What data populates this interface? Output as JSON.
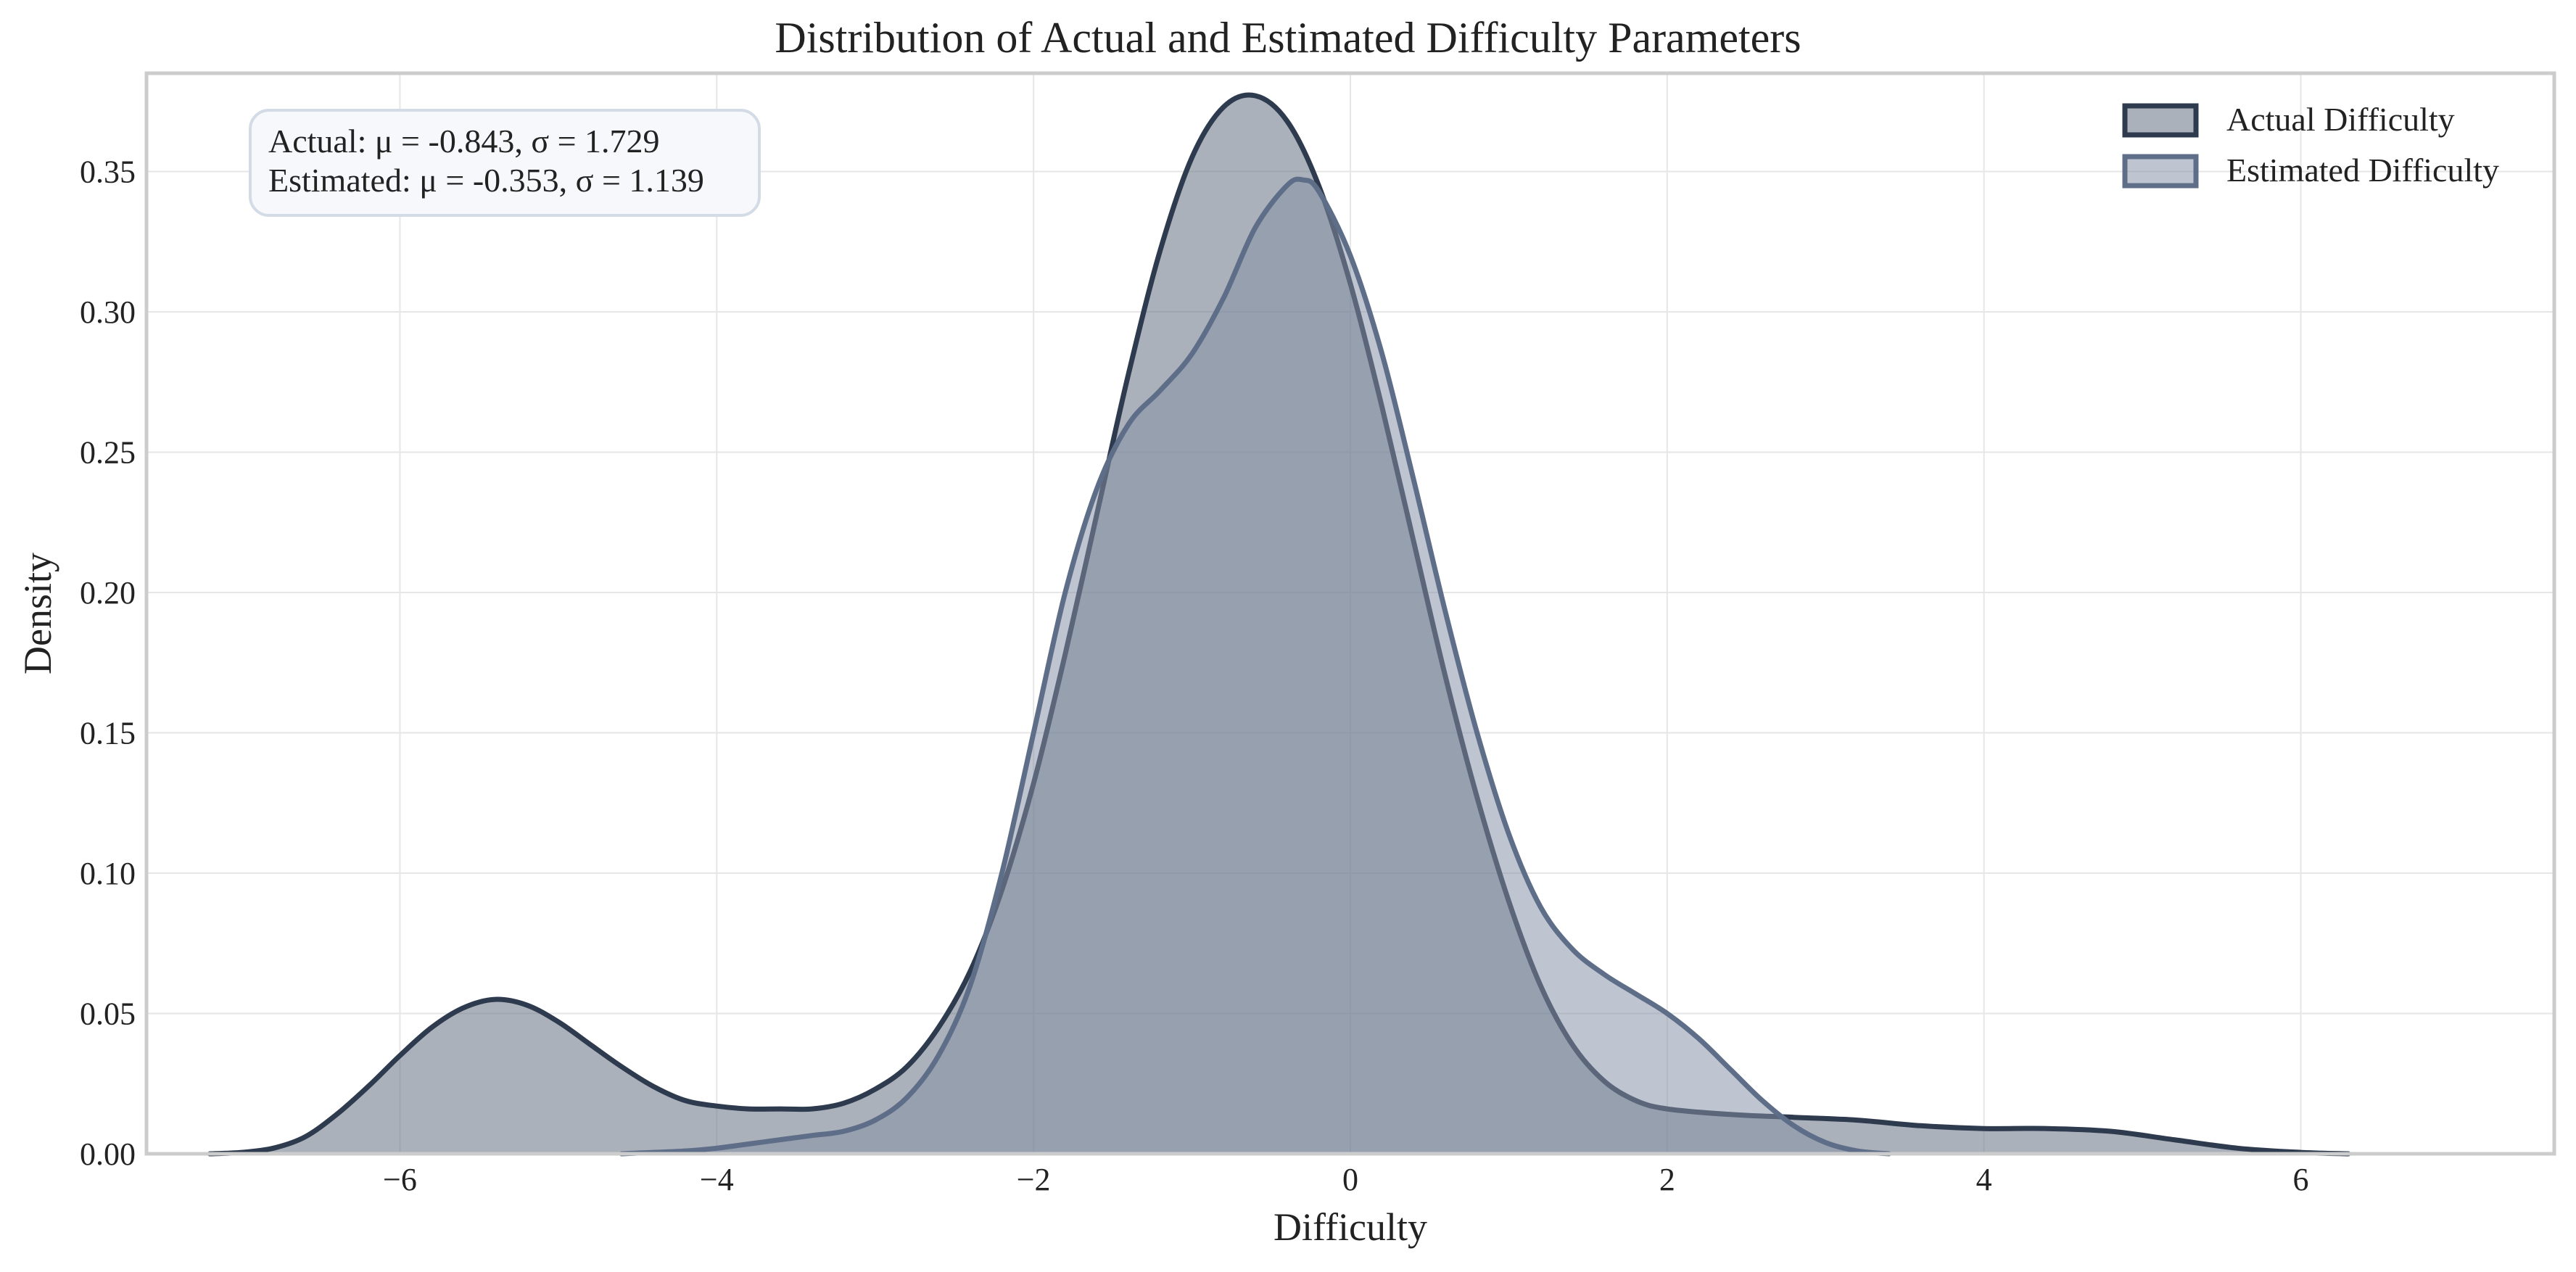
{
  "chart_data": {
    "type": "area",
    "title": "Distribution of Actual and Estimated Difficulty Parameters",
    "xlabel": "Difficulty",
    "ylabel": "Density",
    "xlim": [
      -7.6,
      7.6
    ],
    "ylim": [
      0,
      0.385
    ],
    "x_ticks": [
      -6,
      -4,
      -2,
      0,
      2,
      4,
      6
    ],
    "x_tick_labels": [
      "−6",
      "−4",
      "−2",
      "0",
      "2",
      "4",
      "6"
    ],
    "y_ticks": [
      0.0,
      0.05,
      0.1,
      0.15,
      0.2,
      0.25,
      0.3,
      0.35
    ],
    "y_tick_labels": [
      "0.00",
      "0.05",
      "0.10",
      "0.15",
      "0.20",
      "0.25",
      "0.30",
      "0.35"
    ],
    "grid": true,
    "legend_position": "top-right",
    "stats_box": {
      "line1": "Actual: μ = -0.843, σ = 1.729",
      "line2": "Estimated: μ = -0.353, σ = 1.139"
    },
    "series": [
      {
        "name": "Actual Difficulty",
        "color": "#2e3a4e",
        "fill": "#6b7585",
        "fill_opacity": 0.57,
        "points": [
          [
            -7.2,
            0.0
          ],
          [
            -7.0,
            0.0005
          ],
          [
            -6.8,
            0.002
          ],
          [
            -6.6,
            0.006
          ],
          [
            -6.4,
            0.014
          ],
          [
            -6.2,
            0.024
          ],
          [
            -6.0,
            0.035
          ],
          [
            -5.8,
            0.045
          ],
          [
            -5.6,
            0.052
          ],
          [
            -5.4,
            0.055
          ],
          [
            -5.2,
            0.053
          ],
          [
            -5.0,
            0.047
          ],
          [
            -4.8,
            0.039
          ],
          [
            -4.6,
            0.031
          ],
          [
            -4.4,
            0.024
          ],
          [
            -4.2,
            0.019
          ],
          [
            -4.0,
            0.017
          ],
          [
            -3.8,
            0.016
          ],
          [
            -3.6,
            0.016
          ],
          [
            -3.4,
            0.016
          ],
          [
            -3.2,
            0.018
          ],
          [
            -3.0,
            0.023
          ],
          [
            -2.8,
            0.031
          ],
          [
            -2.6,
            0.045
          ],
          [
            -2.4,
            0.065
          ],
          [
            -2.2,
            0.094
          ],
          [
            -2.0,
            0.132
          ],
          [
            -1.8,
            0.178
          ],
          [
            -1.6,
            0.228
          ],
          [
            -1.4,
            0.278
          ],
          [
            -1.2,
            0.322
          ],
          [
            -1.0,
            0.355
          ],
          [
            -0.8,
            0.373
          ],
          [
            -0.6,
            0.377
          ],
          [
            -0.4,
            0.368
          ],
          [
            -0.2,
            0.345
          ],
          [
            0.0,
            0.31
          ],
          [
            0.2,
            0.266
          ],
          [
            0.4,
            0.218
          ],
          [
            0.6,
            0.17
          ],
          [
            0.8,
            0.127
          ],
          [
            1.0,
            0.09
          ],
          [
            1.2,
            0.06
          ],
          [
            1.4,
            0.039
          ],
          [
            1.6,
            0.026
          ],
          [
            1.8,
            0.019
          ],
          [
            2.0,
            0.016
          ],
          [
            2.4,
            0.014
          ],
          [
            2.8,
            0.013
          ],
          [
            3.2,
            0.012
          ],
          [
            3.6,
            0.01
          ],
          [
            4.0,
            0.009
          ],
          [
            4.4,
            0.009
          ],
          [
            4.8,
            0.008
          ],
          [
            5.2,
            0.005
          ],
          [
            5.6,
            0.002
          ],
          [
            6.0,
            0.0005
          ],
          [
            6.3,
            0.0
          ]
        ]
      },
      {
        "name": "Estimated Difficulty",
        "color": "#5f6e88",
        "fill": "#8590a5",
        "fill_opacity": 0.52,
        "points": [
          [
            -4.6,
            0.0
          ],
          [
            -4.4,
            0.0005
          ],
          [
            -4.2,
            0.001
          ],
          [
            -4.0,
            0.002
          ],
          [
            -3.8,
            0.0035
          ],
          [
            -3.6,
            0.005
          ],
          [
            -3.4,
            0.0065
          ],
          [
            -3.2,
            0.008
          ],
          [
            -3.0,
            0.012
          ],
          [
            -2.8,
            0.02
          ],
          [
            -2.6,
            0.035
          ],
          [
            -2.4,
            0.06
          ],
          [
            -2.2,
            0.1
          ],
          [
            -2.0,
            0.15
          ],
          [
            -1.8,
            0.2
          ],
          [
            -1.6,
            0.237
          ],
          [
            -1.4,
            0.26
          ],
          [
            -1.2,
            0.272
          ],
          [
            -1.0,
            0.285
          ],
          [
            -0.8,
            0.305
          ],
          [
            -0.6,
            0.33
          ],
          [
            -0.4,
            0.345
          ],
          [
            -0.3,
            0.347
          ],
          [
            -0.2,
            0.343
          ],
          [
            0.0,
            0.32
          ],
          [
            0.2,
            0.285
          ],
          [
            0.4,
            0.24
          ],
          [
            0.6,
            0.193
          ],
          [
            0.8,
            0.15
          ],
          [
            1.0,
            0.114
          ],
          [
            1.2,
            0.088
          ],
          [
            1.4,
            0.073
          ],
          [
            1.6,
            0.064
          ],
          [
            1.8,
            0.057
          ],
          [
            2.0,
            0.05
          ],
          [
            2.2,
            0.041
          ],
          [
            2.4,
            0.03
          ],
          [
            2.6,
            0.019
          ],
          [
            2.8,
            0.01
          ],
          [
            3.0,
            0.004
          ],
          [
            3.2,
            0.001
          ],
          [
            3.4,
            0.0
          ]
        ]
      }
    ]
  }
}
